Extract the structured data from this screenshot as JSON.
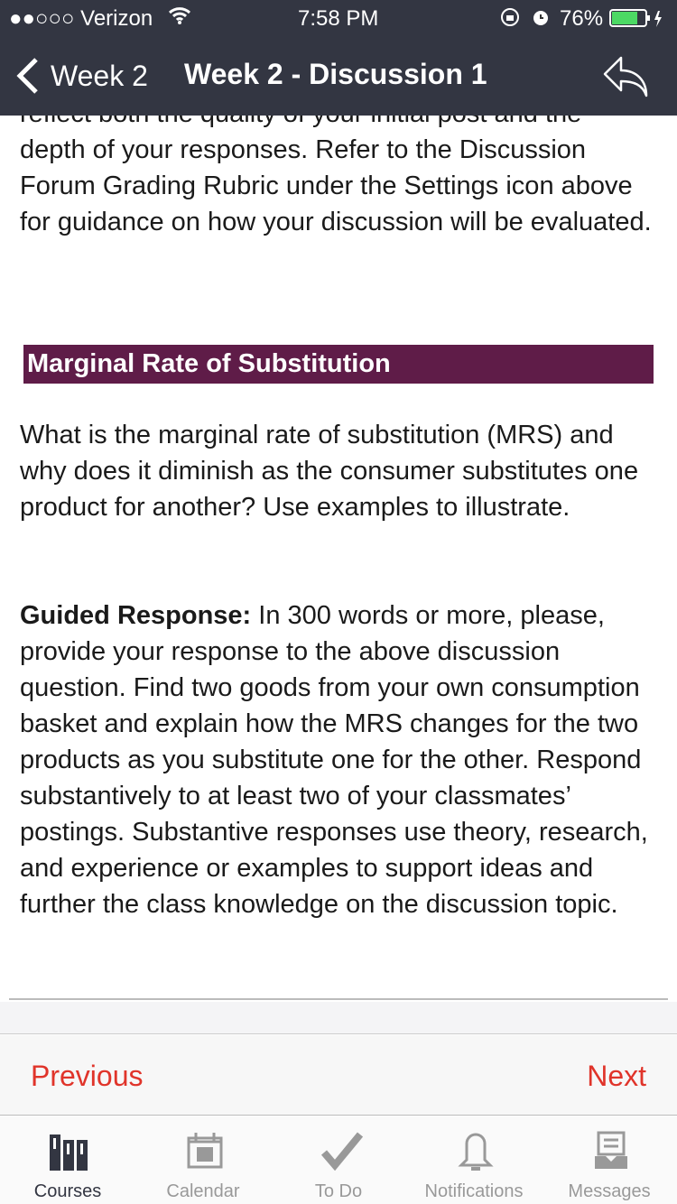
{
  "status": {
    "carrier": "●●○○○ Verizon",
    "time": "7:58 PM",
    "battery": "76%",
    "battery_level": 0.76
  },
  "nav": {
    "back_label": "Week 2",
    "title": "Week 2 - Discussion 1"
  },
  "content": {
    "clipped_line": "reflect both the quality of your initial post and the",
    "intro": "depth of your responses. Refer to the Discussion Forum Grading Rubric under the Settings icon above for guidance on how your discussion will be evaluated.",
    "section_title": "Marginal Rate of Substitution",
    "question": "What is the marginal rate of substitution (MRS) and why does it diminish as the consumer substitutes one product for another? Use examples to illustrate.",
    "guided_label": "Guided Response:",
    "guided_text": " In 300 words or more, please, provide your response to the above discussion question. Find two goods from your own consumption basket and explain how the MRS changes for the two products as you substitute one for the other. Respond substantively to at least two of your classmates’ postings. Substantive responses use theory, research, and experience or examples to support ideas and further the class knowledge on the discussion topic."
  },
  "pager": {
    "previous": "Previous",
    "next": "Next",
    "color": "#e0342a"
  },
  "tabs": [
    {
      "label": "Courses",
      "icon": "courses-icon",
      "active": true
    },
    {
      "label": "Calendar",
      "icon": "calendar-icon"
    },
    {
      "label": "To Do",
      "icon": "checkmark-icon"
    },
    {
      "label": "Notifications",
      "icon": "bell-icon"
    },
    {
      "label": "Messages",
      "icon": "inbox-icon"
    }
  ]
}
